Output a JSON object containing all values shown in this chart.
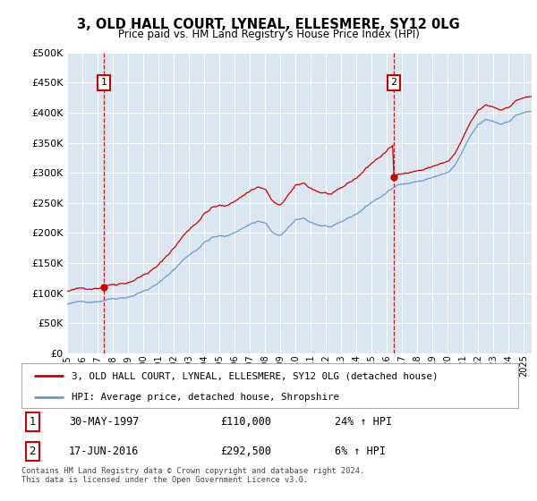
{
  "title": "3, OLD HALL COURT, LYNEAL, ELLESMERE, SY12 0LG",
  "subtitle": "Price paid vs. HM Land Registry's House Price Index (HPI)",
  "property_label": "3, OLD HALL COURT, LYNEAL, ELLESMERE, SY12 0LG (detached house)",
  "hpi_label": "HPI: Average price, detached house, Shropshire",
  "annotation1": {
    "num": "1",
    "date": "30-MAY-1997",
    "price": "£110,000",
    "hpi": "24% ↑ HPI",
    "year": 1997.41
  },
  "annotation2": {
    "num": "2",
    "date": "17-JUN-2016",
    "price": "£292,500",
    "hpi": "6% ↑ HPI",
    "year": 2016.45
  },
  "footer": "Contains HM Land Registry data © Crown copyright and database right 2024.\nThis data is licensed under the Open Government Licence v3.0.",
  "sale1_price": 110000,
  "sale2_price": 292500,
  "property_color": "#cc0000",
  "hpi_color": "#6699cc",
  "background_color": "#dce6f1",
  "grid_color": "#ffffff",
  "ylim": [
    0,
    500000
  ],
  "yticks": [
    0,
    50000,
    100000,
    150000,
    200000,
    250000,
    300000,
    350000,
    400000,
    450000,
    500000
  ],
  "xlim_start": 1995.0,
  "xlim_end": 2025.5
}
